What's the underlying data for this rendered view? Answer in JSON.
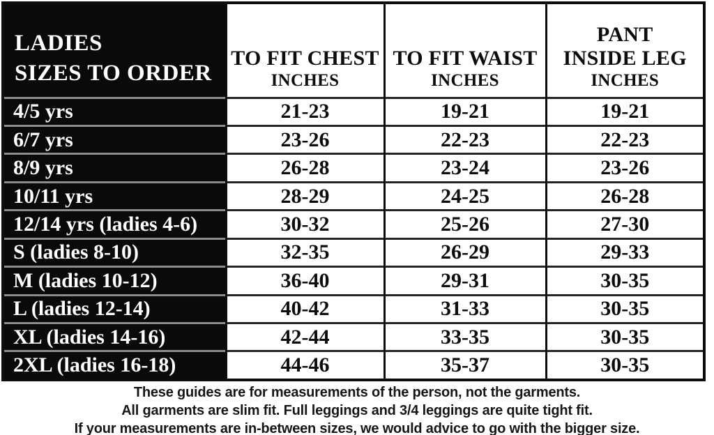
{
  "table": {
    "header": {
      "title_line1": "LADIES",
      "title_line2": "SIZES TO ORDER",
      "chest_title": "TO FIT CHEST",
      "waist_title": "TO FIT WAIST",
      "pant_title_line1": "PANT",
      "pant_title_line2": "INSIDE LEG",
      "units_label": "INCHES"
    },
    "rows": [
      {
        "size": "4/5 yrs",
        "chest": "21-23",
        "waist": "19-21",
        "pant": "19-21"
      },
      {
        "size": "6/7 yrs",
        "chest": "23-26",
        "waist": "22-23",
        "pant": "22-23"
      },
      {
        "size": "8/9 yrs",
        "chest": "26-28",
        "waist": "23-24",
        "pant": "23-26"
      },
      {
        "size": "10/11 yrs",
        "chest": "28-29",
        "waist": "24-25",
        "pant": "26-28"
      },
      {
        "size": "12/14 yrs (ladies 4-6)",
        "chest": "30-32",
        "waist": "25-26",
        "pant": "27-30"
      },
      {
        "size": "S (ladies 8-10)",
        "chest": "32-35",
        "waist": "26-29",
        "pant": "29-33"
      },
      {
        "size": "M (ladies 10-12)",
        "chest": "36-40",
        "waist": "29-31",
        "pant": "30-35"
      },
      {
        "size": "L (ladies 12-14)",
        "chest": "40-42",
        "waist": "31-33",
        "pant": "30-35"
      },
      {
        "size": "XL (ladies 14-16)",
        "chest": "42-44",
        "waist": "33-35",
        "pant": "30-35"
      },
      {
        "size": "2XL (ladies 16-18)",
        "chest": "44-46",
        "waist": "35-37",
        "pant": "30-35"
      }
    ]
  },
  "footer": {
    "line1": "These guides are for measurements of the person, not the garments.",
    "line2": "All garments are slim fit. Full leggings and 3/4 leggings are quite tight fit.",
    "line3": "If your measurements are in-between sizes, we would advice to go with the bigger size."
  },
  "colors": {
    "label_column_bg": "#0a0a0a",
    "cell_bg": "#ffffff",
    "grid_line": "#0d0d0d",
    "label_row_separator": "#8c8c8c",
    "text_dark": "#0d0d0d",
    "text_light": "#ffffff"
  }
}
